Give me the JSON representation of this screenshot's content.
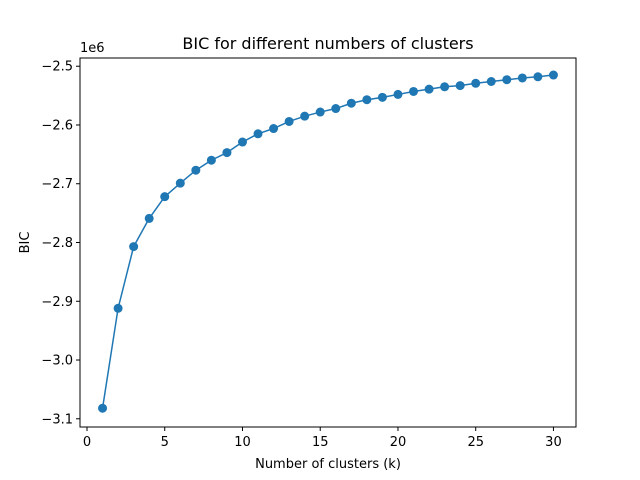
{
  "chart_data": {
    "type": "line",
    "title": "BIC for different numbers of clusters",
    "xlabel": "Number of clusters (k)",
    "ylabel": "BIC",
    "offset_label": "1e6",
    "xlim": [
      -0.45,
      31.45
    ],
    "ylim": [
      -3.114,
      -2.486
    ],
    "grid": false,
    "legend": "none",
    "x_ticks": [
      0,
      5,
      10,
      15,
      20,
      25,
      30
    ],
    "x_tick_labels": [
      "0",
      "5",
      "10",
      "15",
      "20",
      "25",
      "30"
    ],
    "y_ticks": [
      -3.1,
      -3.0,
      -2.9,
      -2.8,
      -2.7,
      -2.6,
      -2.5
    ],
    "y_tick_labels": [
      "−3.1",
      "−3.0",
      "−2.9",
      "−2.8",
      "−2.7",
      "−2.6",
      "−2.5"
    ],
    "series": [
      {
        "name": "BIC",
        "color": "#1f77b4",
        "marker": "circle",
        "x": [
          1,
          2,
          3,
          4,
          5,
          6,
          7,
          8,
          9,
          10,
          11,
          12,
          13,
          14,
          15,
          16,
          17,
          18,
          19,
          20,
          21,
          22,
          23,
          24,
          25,
          26,
          27,
          28,
          29,
          30
        ],
        "values": [
          -3.082,
          -2.912,
          -2.807,
          -2.759,
          -2.722,
          -2.699,
          -2.677,
          -2.66,
          -2.647,
          -2.629,
          -2.615,
          -2.606,
          -2.594,
          -2.585,
          -2.578,
          -2.572,
          -2.563,
          -2.557,
          -2.553,
          -2.548,
          -2.543,
          -2.539,
          -2.535,
          -2.533,
          -2.529,
          -2.526,
          -2.523,
          -2.52,
          -2.518,
          -2.515
        ]
      }
    ]
  }
}
